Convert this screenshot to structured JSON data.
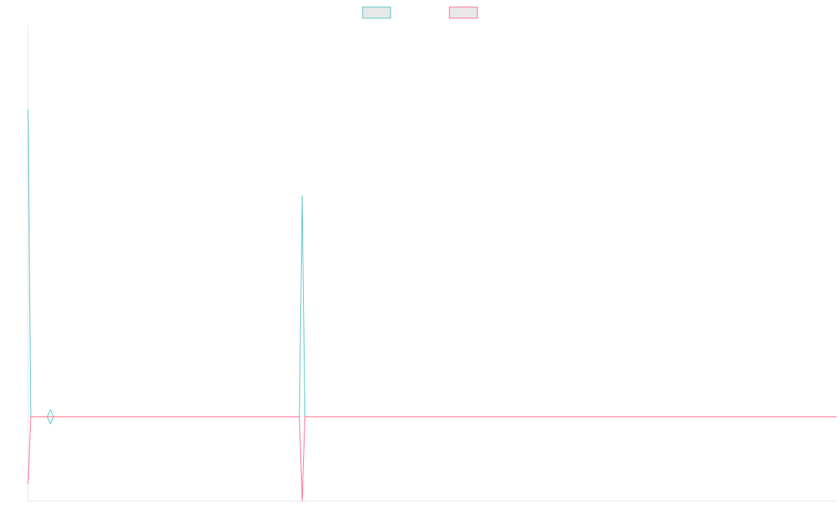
{
  "chart_data": {
    "type": "line",
    "x": [
      0,
      1,
      2,
      3,
      4,
      5,
      6,
      7,
      8,
      9,
      10,
      11,
      12,
      13,
      14,
      15,
      16,
      17,
      18,
      19,
      20,
      21,
      22,
      23,
      24,
      25,
      26,
      27,
      28,
      29,
      30,
      31,
      32,
      33,
      34,
      35,
      36,
      37,
      38,
      39,
      40,
      41,
      42,
      43,
      44,
      45,
      46,
      47,
      48,
      49,
      50,
      51,
      52,
      53,
      54,
      55,
      56,
      57,
      58,
      59,
      60,
      61,
      62,
      63,
      64,
      65,
      66,
      67,
      68,
      69,
      70,
      71,
      72,
      73,
      74,
      75,
      76,
      77,
      78,
      79,
      80,
      81,
      82,
      83,
      84,
      85,
      86,
      87,
      88,
      89,
      90,
      91,
      92,
      93,
      94,
      95,
      96,
      97,
      98,
      99,
      100,
      101,
      102,
      103,
      104,
      105,
      106,
      107,
      108,
      109,
      110,
      111,
      112,
      113,
      114,
      115,
      116,
      117,
      118,
      119,
      120,
      121,
      122,
      123,
      124,
      125,
      126,
      127,
      128,
      129,
      130,
      131,
      132,
      133,
      134,
      135,
      136,
      137,
      138,
      139,
      140,
      141,
      142,
      143,
      144,
      145,
      146,
      147,
      148,
      149,
      150,
      151,
      152,
      153,
      154,
      155,
      156,
      157,
      158,
      159,
      160,
      161,
      162,
      163,
      164,
      165,
      166,
      167,
      168,
      169,
      170,
      171,
      172,
      173,
      174,
      175,
      176,
      177,
      178,
      179,
      180,
      181,
      182,
      183,
      184,
      185,
      186,
      187,
      188,
      189,
      190,
      191,
      192,
      193,
      194,
      195,
      196,
      197,
      198,
      199,
      200,
      201,
      202,
      203,
      204,
      205,
      206,
      207,
      208,
      209,
      210,
      211,
      212,
      213,
      214,
      215,
      216,
      217,
      218,
      219,
      220,
      221,
      222,
      223,
      224,
      225,
      226,
      227,
      228,
      229,
      230,
      231,
      232,
      233,
      234,
      235,
      236,
      237,
      238,
      239,
      240,
      241,
      242,
      243,
      244,
      245,
      246,
      247,
      248,
      249,
      250,
      251,
      252,
      253,
      254,
      255,
      256,
      257,
      258,
      259,
      260,
      261,
      262,
      263,
      264,
      265,
      266,
      267,
      268,
      269,
      270,
      271,
      272,
      273,
      274,
      275,
      276,
      277,
      278,
      279,
      280,
      281,
      282,
      283,
      284,
      285,
      286,
      287,
      288,
      289
    ],
    "series": [
      {
        "color": "#4bc0c0",
        "spikes": [
          {
            "x": 0,
            "y": 112
          },
          {
            "x": 98,
            "y": 80.6
          }
        ],
        "baseline": 0,
        "marker": {
          "x": 8,
          "y": 0,
          "shape": "diamond"
        }
      },
      {
        "color": "#ff6384",
        "spikes": [
          {
            "x": 0,
            "y": -24.5
          },
          {
            "x": 98,
            "y": -30.7
          }
        ],
        "baseline": 0
      }
    ],
    "ylim": [
      -30.7,
      142.5
    ],
    "xlim": [
      0,
      289
    ],
    "title": "",
    "xlabel": "",
    "ylabel": "",
    "legend_placement": "top-center",
    "grid": false
  },
  "legend": {
    "items": [
      {
        "label": "",
        "stroke": "#4bc0c0",
        "fill": "#e8e8e8"
      },
      {
        "label": "",
        "stroke": "#ff6384",
        "fill": "#e8e8e8"
      }
    ]
  }
}
